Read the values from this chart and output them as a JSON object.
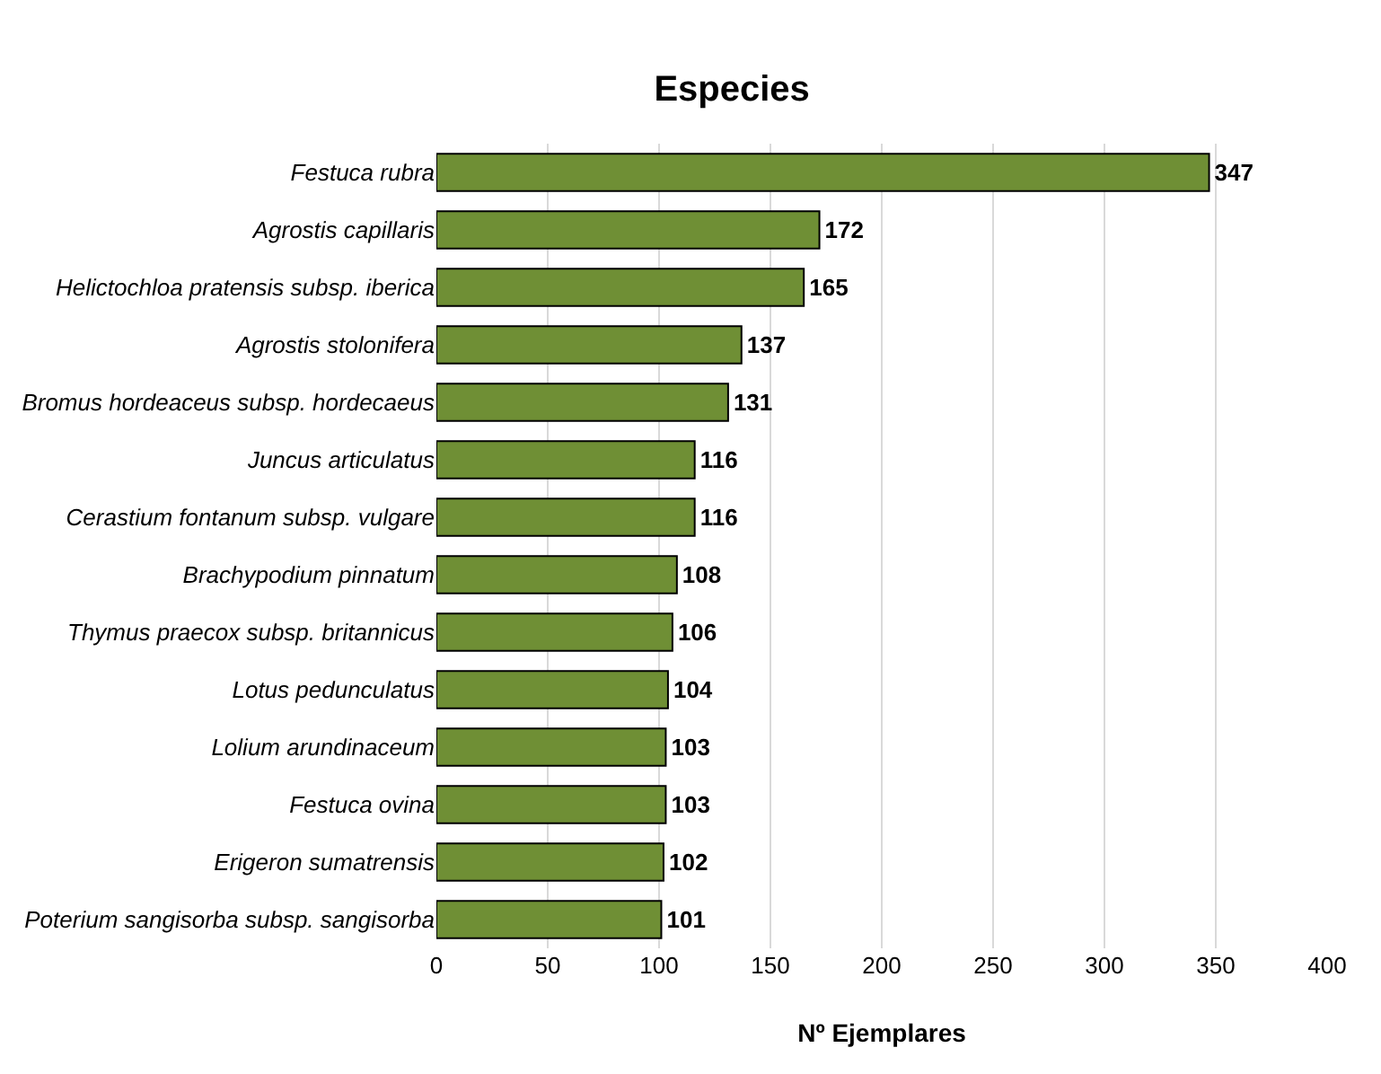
{
  "chart_data": {
    "type": "bar",
    "title": "Especies",
    "xlabel": "Nº Ejemplares",
    "orientation": "horizontal",
    "categories": [
      "Festuca rubra",
      "Agrostis capillaris",
      "Helictochloa pratensis subsp. iberica",
      "Agrostis stolonifera",
      "Bromus hordeaceus subsp. hordecaeus",
      "Juncus articulatus",
      "Cerastium fontanum subsp. vulgare",
      "Brachypodium pinnatum",
      "Thymus praecox subsp. britannicus",
      "Lotus pedunculatus",
      "Lolium arundinaceum",
      "Festuca ovina",
      "Erigeron sumatrensis",
      "Poterium sangisorba subsp. sangisorba"
    ],
    "values": [
      347,
      172,
      165,
      137,
      131,
      116,
      116,
      108,
      106,
      104,
      103,
      103,
      102,
      101
    ],
    "color": "#6f8f35",
    "xlim": [
      0,
      400
    ],
    "xticks": [
      0,
      50,
      100,
      150,
      200,
      250,
      300,
      350,
      400
    ],
    "grid": "x",
    "data_labels": true
  }
}
